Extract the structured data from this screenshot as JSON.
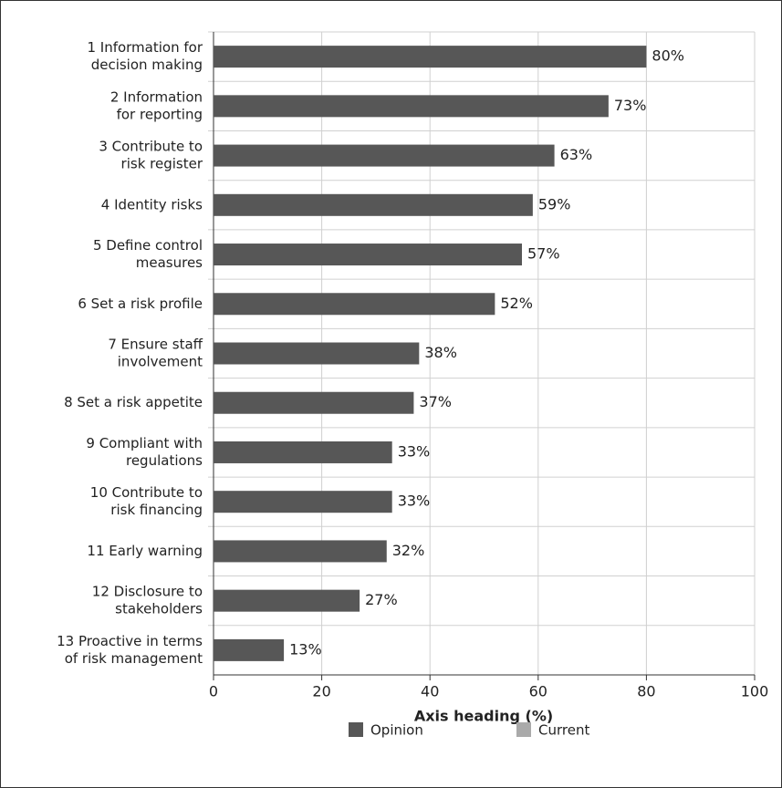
{
  "chart_data": {
    "type": "barh",
    "categories": [
      [
        "1 Information for",
        "decision making"
      ],
      [
        "2 Information",
        "for reporting"
      ],
      [
        "3 Contribute to",
        "risk register"
      ],
      [
        "4 Identity risks"
      ],
      [
        "5 Define control",
        "measures"
      ],
      [
        "6 Set a risk profile"
      ],
      [
        "7 Ensure staff",
        "involvement"
      ],
      [
        "8 Set a risk appetite"
      ],
      [
        "9 Compliant with",
        "regulations"
      ],
      [
        "10 Contribute to",
        "risk financing"
      ],
      [
        "11 Early warning"
      ],
      [
        "12 Disclosure to",
        "stakeholders"
      ],
      [
        "13 Proactive in terms",
        "of risk management"
      ]
    ],
    "series": [
      {
        "name": "Opinion",
        "color": "#575757",
        "values": [
          80,
          73,
          63,
          59,
          57,
          52,
          38,
          37,
          33,
          33,
          32,
          27,
          13
        ],
        "value_labels": [
          "80%",
          "73%",
          "63%",
          "59%",
          "57%",
          "52%",
          "38%",
          "37%",
          "33%",
          "33%",
          "32%",
          "27%",
          "13%"
        ]
      },
      {
        "name": "Current",
        "color": "#aaaaaa",
        "values": [
          null,
          null,
          null,
          null,
          null,
          null,
          null,
          null,
          null,
          null,
          null,
          null,
          null
        ]
      }
    ],
    "xlabel": "Axis heading (%)",
    "xlim": [
      0,
      100
    ],
    "xticks": [
      0,
      20,
      40,
      60,
      80,
      100
    ],
    "grid": true
  }
}
